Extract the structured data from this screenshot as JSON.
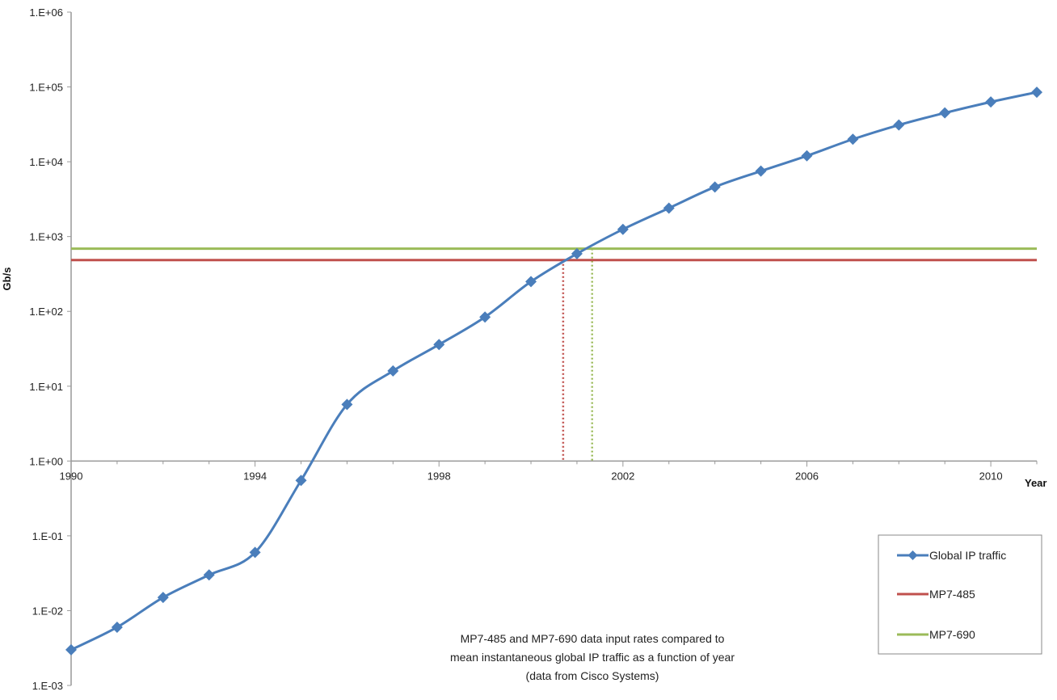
{
  "chart_data": {
    "type": "line",
    "title": "",
    "caption": [
      "MP7-485 and MP7-690 data  input  rates  compared to",
      "mean instantaneous global IP traffic as a function of year",
      "(data from Cisco Systems)"
    ],
    "xlabel": "Year",
    "ylabel": "Gb/s",
    "xlim": [
      1990,
      2011
    ],
    "ylim": [
      0.001,
      1000000
    ],
    "yscale": "log",
    "x_crosses_y_at": 1,
    "xticks": [
      1990,
      1994,
      1998,
      2002,
      2006,
      2010
    ],
    "yticks": [
      {
        "value": 1000000,
        "label": "1.E+06"
      },
      {
        "value": 100000,
        "label": "1.E+05"
      },
      {
        "value": 10000,
        "label": "1.E+04"
      },
      {
        "value": 1000,
        "label": "1.E+03"
      },
      {
        "value": 100,
        "label": "1.E+02"
      },
      {
        "value": 10,
        "label": "1.E+01"
      },
      {
        "value": 1,
        "label": "1.E+00"
      },
      {
        "value": 0.1,
        "label": "1.E-01"
      },
      {
        "value": 0.01,
        "label": "1.E-02"
      },
      {
        "value": 0.001,
        "label": "1.E-03"
      }
    ],
    "grid": false,
    "legend_position": "bottom-right",
    "series": [
      {
        "name": "Global IP traffic",
        "color": "#4a7ebb",
        "marker": "diamond",
        "x": [
          1990,
          1991,
          1992,
          1993,
          1994,
          1995,
          1996,
          1997,
          1998,
          1999,
          2000,
          2001,
          2002,
          2003,
          2004,
          2005,
          2006,
          2007,
          2008,
          2009,
          2010,
          2011
        ],
        "values": [
          0.003,
          0.006,
          0.015,
          0.03,
          0.06,
          0.55,
          5.7,
          16,
          36,
          84,
          250,
          590,
          1250,
          2400,
          4600,
          7500,
          12000,
          20000,
          31000,
          45000,
          63000,
          85000
        ]
      },
      {
        "name": "MP7-485",
        "color": "#c0504d",
        "constant": 485,
        "crossing_year": 2000.7
      },
      {
        "name": "MP7-690",
        "color": "#9bbb59",
        "constant": 690,
        "crossing_year": 2001.33
      }
    ]
  }
}
